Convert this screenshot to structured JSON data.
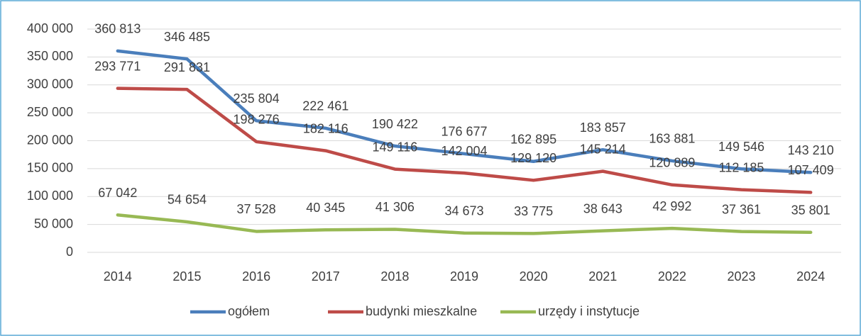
{
  "chart_data": {
    "type": "line",
    "categories": [
      "2014",
      "2015",
      "2016",
      "2017",
      "2018",
      "2019",
      "2020",
      "2021",
      "2022",
      "2023",
      "2024"
    ],
    "series": [
      {
        "name": "ogółem",
        "color": "#4a7ebb",
        "values": [
          360813,
          346485,
          235804,
          222461,
          190422,
          176677,
          162895,
          183857,
          163881,
          149546,
          143210
        ],
        "value_labels": [
          "360 813",
          "346 485",
          "235 804",
          "222 461",
          "190 422",
          "176 677",
          "162 895",
          "183 857",
          "163 881",
          "149 546",
          "143 210"
        ]
      },
      {
        "name": "budynki mieszkalne",
        "color": "#be4b48",
        "values": [
          293771,
          291831,
          198276,
          182116,
          149116,
          142004,
          129120,
          145214,
          120889,
          112185,
          107409
        ],
        "value_labels": [
          "293 771",
          "291 831",
          "198 276",
          "182 116",
          "149 116",
          "142 004",
          "129 120",
          "145 214",
          "120 889",
          "112 185",
          "107 409"
        ]
      },
      {
        "name": "urzędy i instytucje",
        "color": "#98b954",
        "values": [
          67042,
          54654,
          37528,
          40345,
          41306,
          34673,
          33775,
          38643,
          42992,
          37361,
          35801
        ],
        "value_labels": [
          "67 042",
          "54 654",
          "37 528",
          "40 345",
          "41 306",
          "34 673",
          "33 775",
          "38 643",
          "42 992",
          "37 361",
          "35 801"
        ]
      }
    ],
    "ylim": [
      0,
      400000
    ],
    "yticks": [
      0,
      {
        "value": 50000,
        "label": "50 000"
      },
      {
        "value": 100000,
        "label": "100 000"
      },
      {
        "value": 150000,
        "label": "150 000"
      },
      {
        "value": 200000,
        "label": "200 000"
      },
      {
        "value": 250000,
        "label": "250 000"
      },
      {
        "value": 300000,
        "label": "300 000"
      },
      {
        "value": 350000,
        "label": "350 000"
      },
      {
        "value": 400000,
        "label": "400 000"
      }
    ],
    "grid": true,
    "legend": "bottom"
  }
}
